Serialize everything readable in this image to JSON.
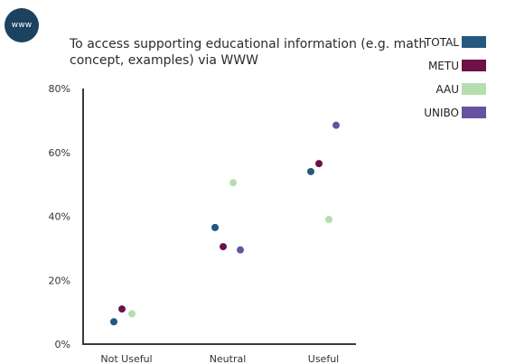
{
  "badge": {
    "label": "www"
  },
  "chart_data": {
    "type": "scatter",
    "title": "To access supporting educational information (e.g. math concept, examples) via WWW",
    "categories": [
      "Not Useful",
      "Neutral",
      "Useful"
    ],
    "ylim": [
      0,
      80
    ],
    "yticks": [
      0,
      20,
      40,
      60,
      80
    ],
    "ytick_labels": [
      "0%",
      "20%",
      "40%",
      "60%",
      "80%"
    ],
    "grid": false,
    "legend_position": "top-right",
    "series": [
      {
        "name": "TOTAL",
        "color": "#25587e",
        "values": [
          7,
          36.5,
          54
        ]
      },
      {
        "name": "METU",
        "color": "#6d1148",
        "values": [
          11,
          30.5,
          56.5
        ]
      },
      {
        "name": "AAU",
        "color": "#b5deae",
        "values": [
          9.5,
          50.5,
          39
        ]
      },
      {
        "name": "UNIBO",
        "color": "#6553a2",
        "values": [
          null,
          29.5,
          68.5
        ]
      }
    ]
  }
}
